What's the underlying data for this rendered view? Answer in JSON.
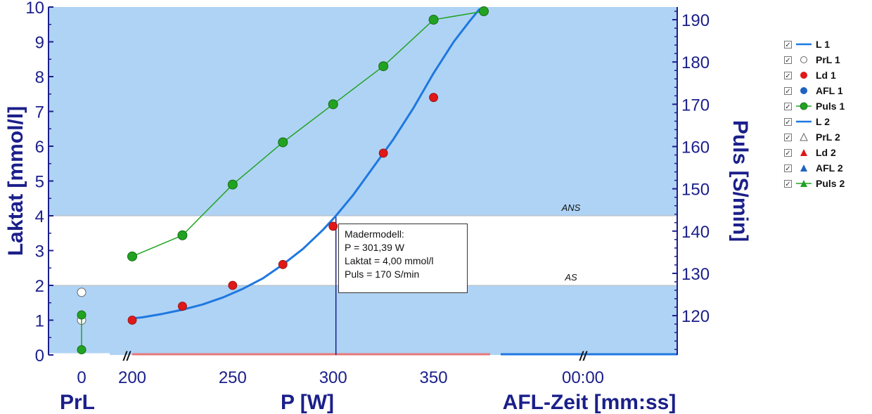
{
  "chart_data": {
    "type": "line",
    "xlabel": "P [W]",
    "ylabel_left": "Laktat [mmol/l]",
    "ylabel_right": "Puls [S/min]",
    "sub_axis_left_label": "PrL",
    "sub_axis_right_label": "AFL-Zeit [mm:ss]",
    "prl_tick": "0",
    "afl_tick": "00:00",
    "xlim": [
      200,
      375
    ],
    "x_ticks": [
      200,
      250,
      300,
      350
    ],
    "ylim_left": [
      0,
      10
    ],
    "y_ticks_left": [
      0,
      1,
      2,
      3,
      4,
      5,
      6,
      7,
      8,
      9,
      10
    ],
    "ylim_right": [
      110.7,
      193
    ],
    "y_ticks_right": [
      120,
      130,
      140,
      150,
      160,
      170,
      180,
      190
    ],
    "thresholds": [
      {
        "label": "ANS",
        "y": 4.0
      },
      {
        "label": "AS",
        "y": 2.0
      }
    ],
    "series": [
      {
        "name": "L 1",
        "kind": "curve",
        "color": "#1e78e0",
        "x": [
          200,
          205,
          215,
          225,
          235,
          245,
          255,
          265,
          275,
          285,
          295,
          301.39,
          310,
          320,
          330,
          340,
          350,
          360,
          368,
          373
        ],
        "y": [
          1.05,
          1.08,
          1.18,
          1.3,
          1.45,
          1.65,
          1.9,
          2.2,
          2.6,
          3.05,
          3.6,
          4.0,
          4.6,
          5.4,
          6.2,
          7.1,
          8.1,
          9.0,
          9.6,
          9.95
        ]
      },
      {
        "name": "Ld 1",
        "kind": "points",
        "color": "#e01818",
        "x": [
          200,
          225,
          250,
          275,
          300,
          325,
          350
        ],
        "y": [
          1.0,
          1.4,
          2.0,
          2.6,
          3.7,
          5.8,
          7.4
        ]
      },
      {
        "name": "Puls 1",
        "kind": "line-points",
        "color": "#21a321",
        "axis": "right",
        "x": [
          200,
          225,
          250,
          275,
          300,
          325,
          350,
          375
        ],
        "y": [
          134,
          139,
          151,
          161,
          170,
          179,
          190,
          192
        ]
      },
      {
        "name": "PrL 1",
        "kind": "points",
        "color": "#ffffff",
        "subaxis": "PrL",
        "y": [
          1.8,
          1.0
        ]
      },
      {
        "name": "Puls 1 (PrL)",
        "kind": "line-points",
        "color": "#21a321",
        "subaxis": "PrL",
        "y": [
          0.15,
          1.15
        ]
      }
    ],
    "marker_x": 301.39,
    "legend_position": "right"
  },
  "callout": {
    "title": "Madermodell:",
    "line1": "P = 301,39 W",
    "line2": "Laktat = 4,00 mmol/l",
    "line3": "Puls = 170 S/min"
  },
  "legend": [
    {
      "label": "L 1",
      "icon": "blue-line",
      "checked": "✓"
    },
    {
      "label": "PrL 1",
      "icon": "white-circle",
      "checked": "✓"
    },
    {
      "label": "Ld 1",
      "icon": "red-circle",
      "checked": "✓"
    },
    {
      "label": "AFL 1",
      "icon": "blue-circle",
      "checked": "✓"
    },
    {
      "label": "Puls 1",
      "icon": "green-line-circle",
      "checked": "✓"
    },
    {
      "label": "L 2",
      "icon": "blue-line",
      "checked": "✓"
    },
    {
      "label": "PrL 2",
      "icon": "white-triangle",
      "checked": "✓"
    },
    {
      "label": "Ld 2",
      "icon": "red-triangle",
      "checked": "✓"
    },
    {
      "label": "AFL 2",
      "icon": "blue-triangle",
      "checked": "✓"
    },
    {
      "label": "Puls 2",
      "icon": "green-line-triangle",
      "checked": "✓"
    }
  ],
  "colors": {
    "plot_bg": "#afd3f5",
    "zone_bg": "#ffffff",
    "axis": "#1b1f8a",
    "curve": "#1e78e0",
    "lactate": "#e01818",
    "pulse": "#21a321"
  }
}
